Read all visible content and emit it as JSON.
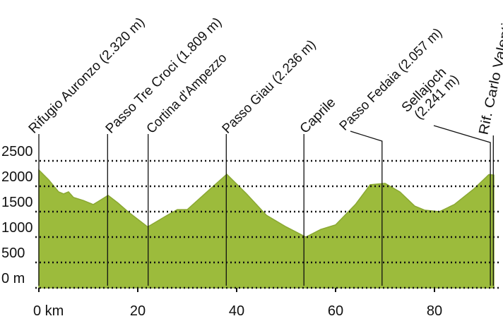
{
  "chart_data": {
    "type": "area",
    "color": "#9cbb3c",
    "x": [
      0,
      2,
      4,
      5,
      6,
      7,
      9,
      11,
      12,
      14,
      16,
      18,
      22,
      26,
      28,
      30,
      34,
      38,
      42,
      46,
      50,
      54,
      57,
      60,
      64,
      67,
      70,
      73,
      76,
      78,
      81,
      84,
      88,
      91,
      92
    ],
    "values": [
      2320,
      2125,
      1890,
      1850,
      1890,
      1780,
      1720,
      1640,
      1700,
      1820,
      1670,
      1500,
      1200,
      1430,
      1540,
      1540,
      1890,
      2236,
      1850,
      1430,
      1200,
      1000,
      1150,
      1240,
      1640,
      2030,
      2057,
      1890,
      1610,
      1530,
      1500,
      1640,
      1950,
      2230,
      2220
    ],
    "xlim": [
      0,
      92.5
    ],
    "ylim": [
      0,
      2800
    ],
    "xticks": [
      {
        "value": 0,
        "label": "0 km"
      },
      20,
      40,
      60,
      80
    ],
    "yticks": [
      {
        "value": 0,
        "label": "0 m"
      },
      500,
      1000,
      1500,
      2000,
      2500
    ],
    "grid": true,
    "annotations": [
      {
        "lines": [
          "Rifugio Auronzo (2.320 m)"
        ],
        "x": 0
      },
      {
        "lines": [
          "Passo Tre Croci (1.809 m)"
        ],
        "x": 13.9
      },
      {
        "lines": [
          "Cortina d'Ampezzo"
        ],
        "x": 22.1
      },
      {
        "lines": [
          "Passo Giau (2.236 m)"
        ],
        "x": 37.9
      },
      {
        "lines": [
          "Caprile"
        ],
        "x": 53.6
      },
      {
        "lines": [
          "Passo Fedaia (2.057 m)"
        ],
        "x": 69.4
      },
      {
        "lines": [
          "Sellajoch",
          "(2.241 m)"
        ],
        "x": 91.3
      },
      {
        "lines": [
          "Rif. Carlo Valentini"
        ],
        "x": 91.9
      }
    ]
  }
}
